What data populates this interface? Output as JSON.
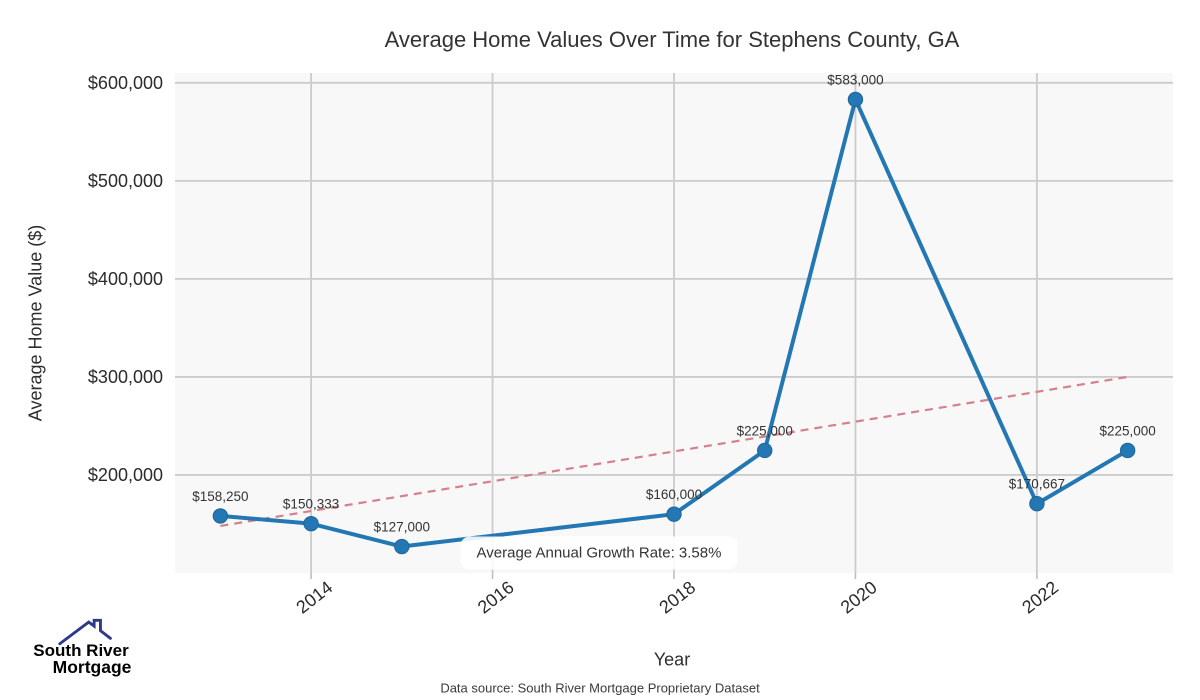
{
  "page": {
    "background": "#ffffff"
  },
  "chart_data": {
    "type": "line",
    "title": "Average Home Values Over Time for Stephens County, GA",
    "xlabel": "Year",
    "ylabel": "Average Home Value ($)",
    "x": [
      2013,
      2014,
      2015,
      2018,
      2019,
      2020,
      2022,
      2023
    ],
    "values": [
      158250,
      150333,
      127000,
      160000,
      225000,
      583000,
      170667,
      225000
    ],
    "point_labels": [
      "$158,250",
      "$150,333",
      "$127,000",
      "$160,000",
      "$225,000",
      "$583,000",
      "$170,667",
      "$225,000"
    ],
    "series_color": "#2378b4",
    "marker_edge_color": "#1d649c",
    "trend": {
      "x": [
        2013,
        2023
      ],
      "values": [
        148000,
        300000
      ],
      "color": "#d6808c",
      "style": "dashed"
    },
    "annotation": "Average Annual Growth Rate: 3.58%",
    "xticks": [
      2014,
      2016,
      2018,
      2020,
      2022
    ],
    "xtick_labels": [
      "2014",
      "2016",
      "2018",
      "2020",
      "2022"
    ],
    "yticks": [
      200000,
      300000,
      400000,
      500000,
      600000
    ],
    "ytick_labels": [
      "$200,000",
      "$300,000",
      "$400,000",
      "$500,000",
      "$600,000"
    ],
    "xlim": [
      2012.5,
      2023.5
    ],
    "ylim": [
      100000,
      610000
    ],
    "grid": true,
    "grid_color": "#cccccc",
    "plot_bg": "#f8f8f8",
    "legend": "none"
  },
  "footer": {
    "source_note": "Data source: South River Mortgage Proprietary Dataset"
  },
  "logo": {
    "line1": "South River",
    "line2": "Mortgage",
    "color1": "#3a5dad",
    "color2": "#2d3a8c"
  }
}
